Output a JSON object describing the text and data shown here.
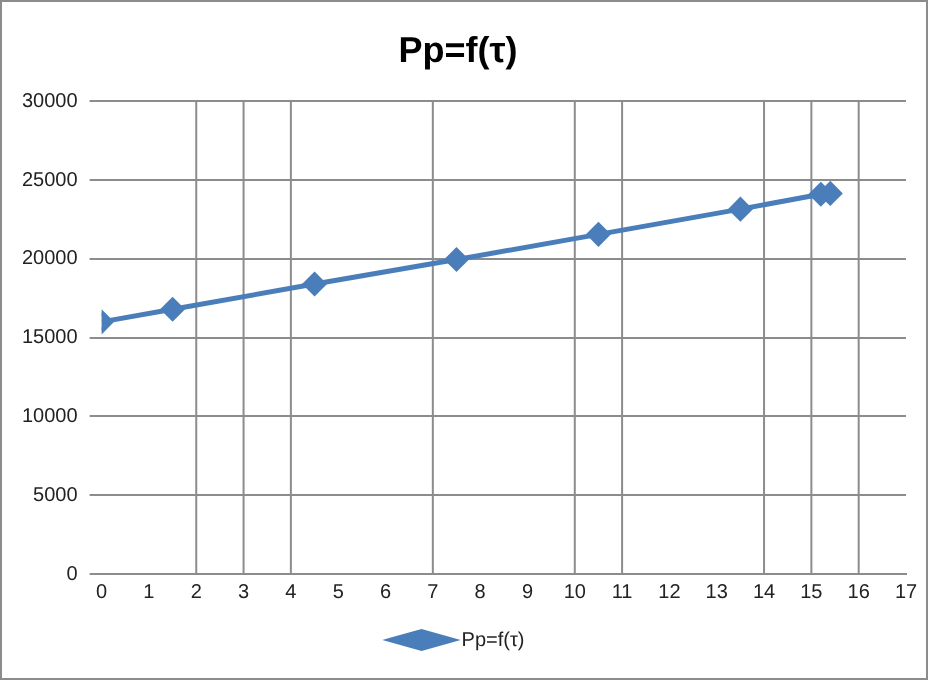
{
  "chart_data": {
    "type": "line",
    "title": "Pp=f(τ)",
    "x": [
      0,
      1.5,
      4.5,
      7.5,
      10.5,
      13.5,
      15.2,
      15.4
    ],
    "series": [
      {
        "name": "Pp=f(τ)",
        "color": "#4a7ebb",
        "values": [
          16000,
          16800,
          18400,
          19950,
          21550,
          23150,
          24100,
          24150
        ]
      }
    ],
    "xlim": [
      0,
      17
    ],
    "xticks": [
      0,
      1,
      2,
      3,
      4,
      5,
      6,
      7,
      8,
      9,
      10,
      11,
      12,
      13,
      14,
      15,
      16,
      17
    ],
    "ylim": [
      0,
      30000
    ],
    "yticks": [
      0,
      5000,
      10000,
      15000,
      20000,
      25000,
      30000
    ],
    "grid": "y",
    "marker": "diamond",
    "line_style": "solid",
    "legend": "bottom",
    "ref_lines": [
      {
        "axis": "x",
        "value": 2,
        "color": "#8c8c8c"
      },
      {
        "axis": "x",
        "value": 3,
        "color": "#8c8c8c"
      },
      {
        "axis": "x",
        "value": 4,
        "color": "#8c8c8c"
      },
      {
        "axis": "x",
        "value": 7,
        "color": "#8c8c8c"
      },
      {
        "axis": "x",
        "value": 10,
        "color": "#8c8c8c"
      },
      {
        "axis": "x",
        "value": 11,
        "color": "#8c8c8c"
      },
      {
        "axis": "x",
        "value": 14,
        "color": "#8c8c8c"
      },
      {
        "axis": "x",
        "value": 15,
        "color": "#8c8c8c"
      },
      {
        "axis": "x",
        "value": 16,
        "color": "#8c8c8c"
      }
    ]
  }
}
